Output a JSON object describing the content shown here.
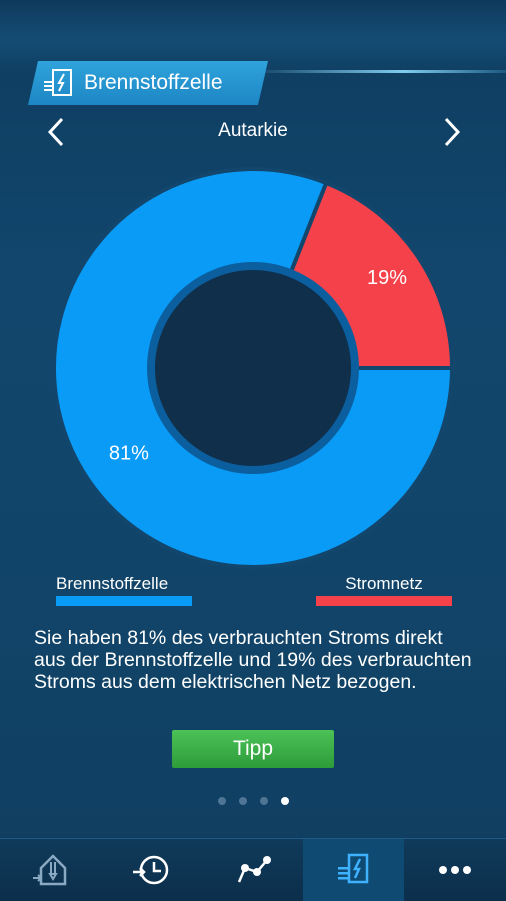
{
  "header": {
    "section_title": "Brennstoffzelle",
    "section_icon": "fuel-cell-icon"
  },
  "nav": {
    "title": "Autarkie",
    "prev_icon": "chevron-left-icon",
    "next_icon": "chevron-right-icon"
  },
  "chart_data": {
    "type": "pie",
    "categories": [
      "Brennstoffzelle",
      "Stromnetz"
    ],
    "values": [
      81,
      19
    ],
    "labels": [
      "81%",
      "19%"
    ],
    "colors": [
      "#0a9bf6",
      "#f5424a"
    ]
  },
  "legend": [
    {
      "label": "Brennstoffzelle",
      "color": "#0a9bf6"
    },
    {
      "label": "Stromnetz",
      "color": "#f5424a"
    }
  ],
  "description": "Sie haben 81% des verbrauchten Stroms direkt aus der Brennstoffzelle und 19% des verbrauchten Stroms aus dem elektrischen Netz bezogen.",
  "tipp_button": {
    "label": "Tipp"
  },
  "pager": {
    "count": 4,
    "active_index": 3
  },
  "bottom_nav": [
    {
      "icon": "house-energy-icon",
      "active": false
    },
    {
      "icon": "history-clock-icon",
      "active": false
    },
    {
      "icon": "graph-nodes-icon",
      "active": false
    },
    {
      "icon": "fuel-cell-icon",
      "active": true
    },
    {
      "icon": "more-dots-icon",
      "active": false
    }
  ]
}
